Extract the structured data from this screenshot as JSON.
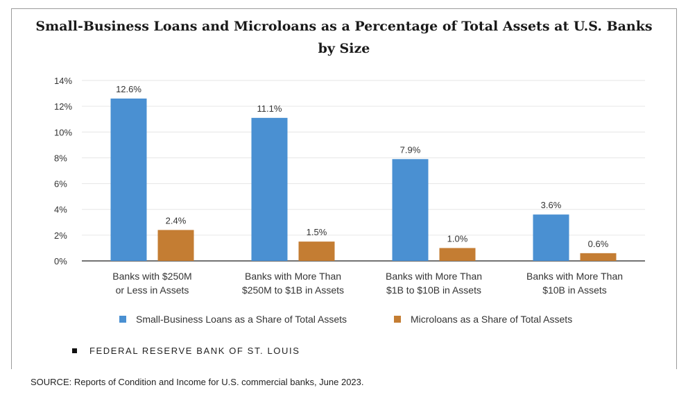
{
  "chart_data": {
    "type": "bar",
    "title_line1": "Small-Business Loans and Microloans as a Percentage of Total Assets at U.S. Banks",
    "title_line2": "by Size",
    "categories": [
      [
        "Banks with $250M",
        "or Less in Assets"
      ],
      [
        "Banks with More Than",
        "$250M to $1B in Assets"
      ],
      [
        "Banks with More Than",
        "$1B to $10B in Assets"
      ],
      [
        "Banks with More Than",
        "$10B in Assets"
      ]
    ],
    "series": [
      {
        "name": "Small-Business Loans as a Share of Total Assets",
        "color": "#4a90d2",
        "values": [
          12.6,
          11.1,
          7.9,
          3.6
        ],
        "labels": [
          "12.6%",
          "11.1%",
          "7.9%",
          "3.6%"
        ]
      },
      {
        "name": "Microloans as a Share of Total Assets",
        "color": "#c47d33",
        "values": [
          2.4,
          1.5,
          1.0,
          0.6
        ],
        "labels": [
          "2.4%",
          "1.5%",
          "1.0%",
          "0.6%"
        ]
      }
    ],
    "yticks": [
      0,
      2,
      4,
      6,
      8,
      10,
      12,
      14
    ],
    "ytick_labels": [
      "0%",
      "2%",
      "4%",
      "6%",
      "8%",
      "10%",
      "12%",
      "14%"
    ],
    "ylim": [
      0,
      14
    ],
    "grid": true,
    "legend_position": "bottom"
  },
  "branding": {
    "text": "FEDERAL RESERVE BANK OF ST. LOUIS"
  },
  "source": {
    "text": "SOURCE: Reports of Condition and Income for U.S. commercial banks, June 2023."
  }
}
